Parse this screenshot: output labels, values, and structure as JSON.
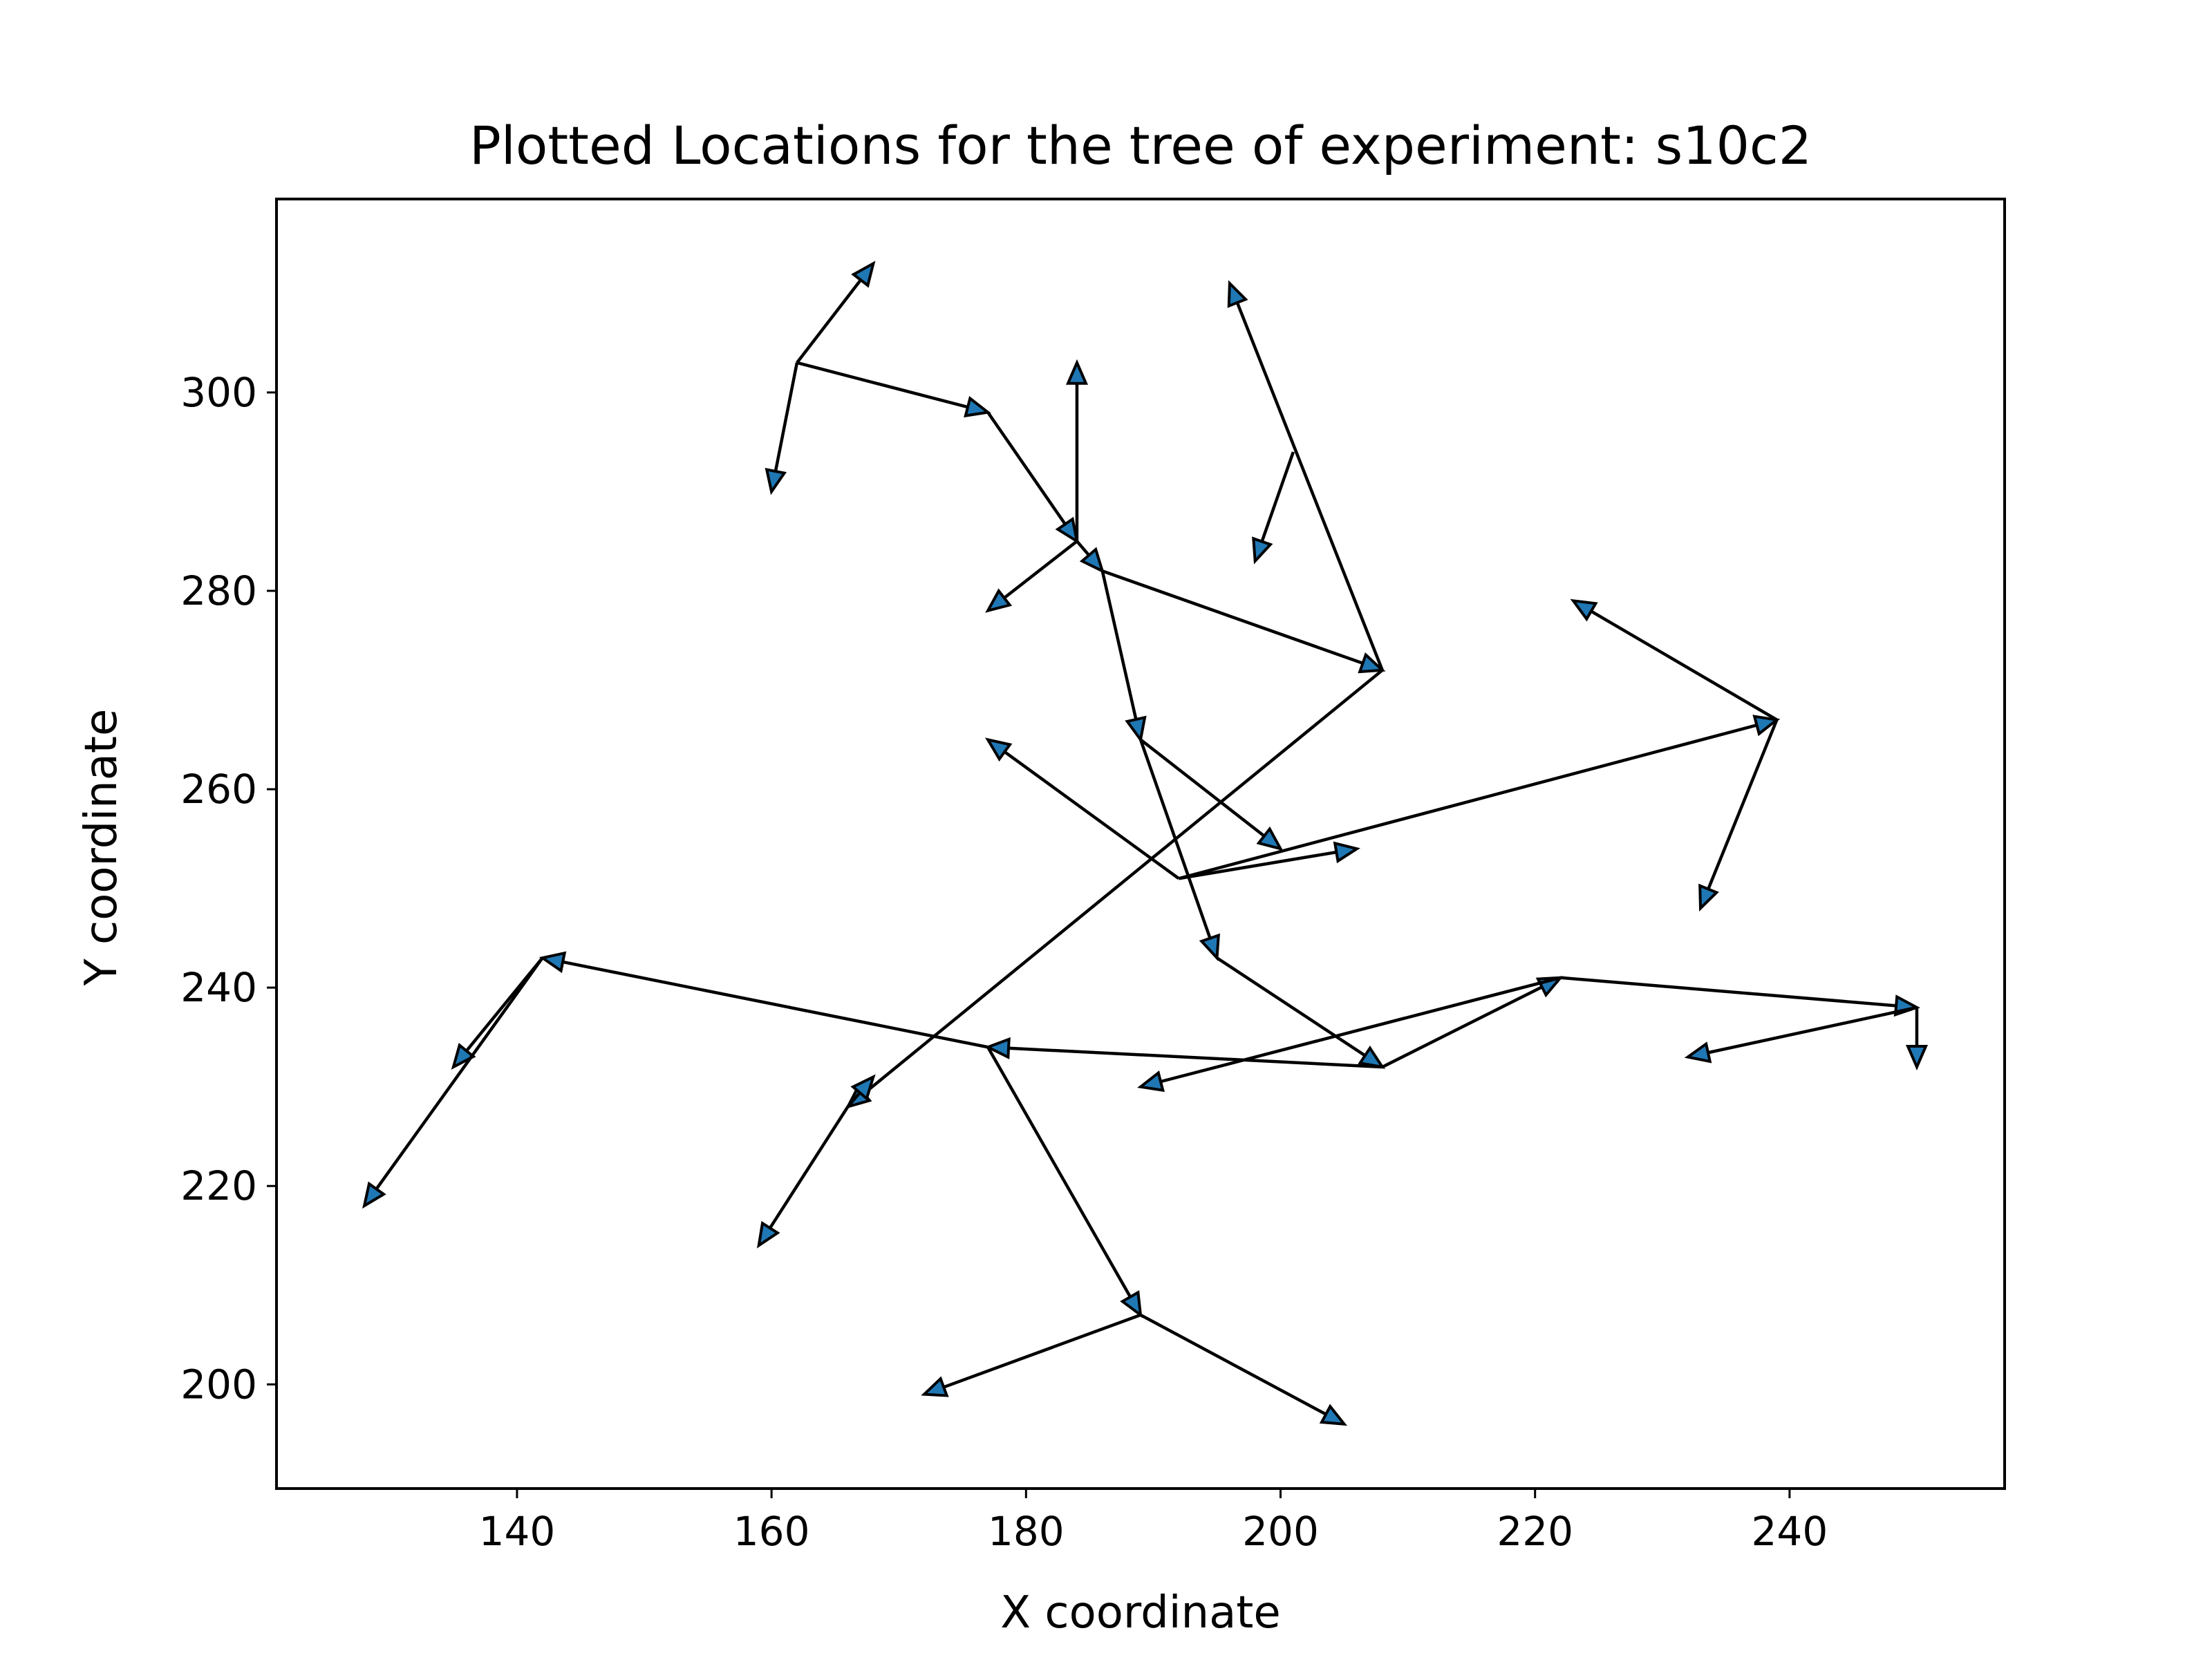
{
  "chart_data": {
    "type": "scatter",
    "title": "Plotted Locations for the tree of experiment: s10c2",
    "xlabel": "X coordinate",
    "ylabel": "Y coordinate",
    "xlim": [
      121.1,
      256.9
    ],
    "ylim": [
      189.5,
      319.5
    ],
    "xticks": [
      140,
      160,
      180,
      200,
      220,
      240
    ],
    "yticks": [
      200,
      220,
      240,
      260,
      280,
      300
    ],
    "grid": false,
    "legend": "none",
    "colors": {
      "edge": "#000000",
      "arrowhead_fill": "#1f77b4"
    },
    "edges": [
      {
        "from": [
          162,
          303
        ],
        "to": [
          168,
          313
        ]
      },
      {
        "from": [
          162,
          303
        ],
        "to": [
          160,
          290
        ]
      },
      {
        "from": [
          162,
          303
        ],
        "to": [
          177,
          298
        ]
      },
      {
        "from": [
          177,
          298
        ],
        "to": [
          184,
          285
        ]
      },
      {
        "from": [
          184,
          285
        ],
        "to": [
          184,
          303
        ]
      },
      {
        "from": [
          184,
          285
        ],
        "to": [
          177,
          278
        ]
      },
      {
        "from": [
          184,
          285
        ],
        "to": [
          186,
          282
        ]
      },
      {
        "from": [
          186,
          282
        ],
        "to": [
          208,
          272
        ]
      },
      {
        "from": [
          208,
          272
        ],
        "to": [
          196,
          311
        ]
      },
      {
        "from": [
          201,
          294
        ],
        "to": [
          198,
          283
        ]
      },
      {
        "from": [
          208,
          272
        ],
        "to": [
          166,
          228
        ]
      },
      {
        "from": [
          166,
          228
        ],
        "to": [
          168,
          231
        ]
      },
      {
        "from": [
          166,
          228
        ],
        "to": [
          159,
          214
        ]
      },
      {
        "from": [
          186,
          282
        ],
        "to": [
          189,
          265
        ]
      },
      {
        "from": [
          189,
          265
        ],
        "to": [
          200,
          254
        ]
      },
      {
        "from": [
          189,
          265
        ],
        "to": [
          195,
          243
        ]
      },
      {
        "from": [
          195,
          243
        ],
        "to": [
          208,
          232
        ]
      },
      {
        "from": [
          192,
          251
        ],
        "to": [
          177,
          265
        ]
      },
      {
        "from": [
          192,
          251
        ],
        "to": [
          206,
          254
        ]
      },
      {
        "from": [
          192,
          251
        ],
        "to": [
          239,
          267
        ]
      },
      {
        "from": [
          239,
          267
        ],
        "to": [
          223,
          279
        ]
      },
      {
        "from": [
          239,
          267
        ],
        "to": [
          233,
          248
        ]
      },
      {
        "from": [
          208,
          232
        ],
        "to": [
          222,
          241
        ]
      },
      {
        "from": [
          222,
          241
        ],
        "to": [
          189,
          230
        ]
      },
      {
        "from": [
          222,
          241
        ],
        "to": [
          250,
          238
        ]
      },
      {
        "from": [
          250,
          238
        ],
        "to": [
          250,
          232
        ]
      },
      {
        "from": [
          250,
          238
        ],
        "to": [
          232,
          233
        ]
      },
      {
        "from": [
          208,
          232
        ],
        "to": [
          177,
          234
        ]
      },
      {
        "from": [
          177,
          234
        ],
        "to": [
          142,
          243
        ]
      },
      {
        "from": [
          142,
          243
        ],
        "to": [
          135,
          232
        ]
      },
      {
        "from": [
          142,
          243
        ],
        "to": [
          128,
          218
        ]
      },
      {
        "from": [
          177,
          234
        ],
        "to": [
          189,
          207
        ]
      },
      {
        "from": [
          189,
          207
        ],
        "to": [
          172,
          199
        ]
      },
      {
        "from": [
          189,
          207
        ],
        "to": [
          205,
          196
        ]
      }
    ]
  }
}
